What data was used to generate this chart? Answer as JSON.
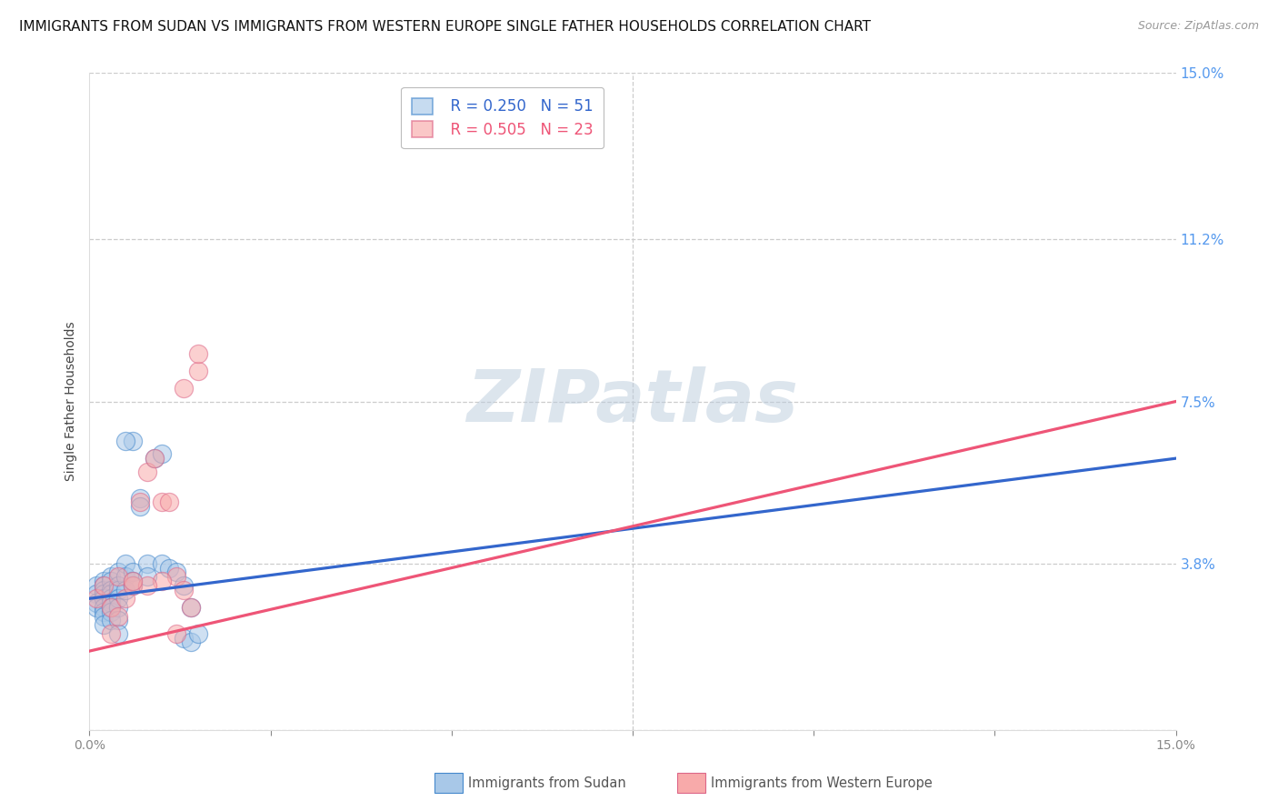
{
  "title": "IMMIGRANTS FROM SUDAN VS IMMIGRANTS FROM WESTERN EUROPE SINGLE FATHER HOUSEHOLDS CORRELATION CHART",
  "source": "Source: ZipAtlas.com",
  "ylabel": "Single Father Households",
  "watermark": "ZIPatlas",
  "xlim": [
    0.0,
    0.15
  ],
  "ylim": [
    0.0,
    0.15
  ],
  "ytick_pos": [
    0.0,
    0.038,
    0.075,
    0.112,
    0.15
  ],
  "ytick_labels": [
    "",
    "3.8%",
    "7.5%",
    "11.2%",
    "15.0%"
  ],
  "xtick_pos": [
    0.0,
    0.025,
    0.05,
    0.075,
    0.1,
    0.125,
    0.15
  ],
  "xtick_labels": [
    "0.0%",
    "",
    "",
    "",
    "",
    "",
    "15.0%"
  ],
  "legend_blue_r": "R = 0.250",
  "legend_blue_n": "N = 51",
  "legend_pink_r": "R = 0.505",
  "legend_pink_n": "N = 23",
  "blue_fill": "#A8C8E8",
  "blue_edge": "#4488CC",
  "pink_fill": "#F8AAAA",
  "pink_edge": "#DD6688",
  "blue_line": "#3366CC",
  "pink_line": "#EE5577",
  "right_tick_color": "#5599EE",
  "title_fontsize": 11,
  "axis_label_fontsize": 10,
  "tick_fontsize": 10,
  "legend_fontsize": 12,
  "watermark_fontsize": 58,
  "source_fontsize": 9,
  "background_color": "#FFFFFF",
  "grid_color": "#CCCCCC",
  "blue_scatter": [
    [
      0.001,
      0.033
    ],
    [
      0.001,
      0.031
    ],
    [
      0.001,
      0.029
    ],
    [
      0.001,
      0.028
    ],
    [
      0.002,
      0.034
    ],
    [
      0.002,
      0.033
    ],
    [
      0.002,
      0.032
    ],
    [
      0.002,
      0.031
    ],
    [
      0.002,
      0.03
    ],
    [
      0.002,
      0.028
    ],
    [
      0.002,
      0.027
    ],
    [
      0.002,
      0.026
    ],
    [
      0.002,
      0.024
    ],
    [
      0.003,
      0.035
    ],
    [
      0.003,
      0.034
    ],
    [
      0.003,
      0.032
    ],
    [
      0.003,
      0.031
    ],
    [
      0.003,
      0.03
    ],
    [
      0.003,
      0.029
    ],
    [
      0.003,
      0.028
    ],
    [
      0.003,
      0.027
    ],
    [
      0.003,
      0.025
    ],
    [
      0.004,
      0.036
    ],
    [
      0.004,
      0.033
    ],
    [
      0.004,
      0.032
    ],
    [
      0.004,
      0.03
    ],
    [
      0.004,
      0.028
    ],
    [
      0.004,
      0.025
    ],
    [
      0.004,
      0.022
    ],
    [
      0.005,
      0.038
    ],
    [
      0.005,
      0.035
    ],
    [
      0.005,
      0.032
    ],
    [
      0.006,
      0.036
    ],
    [
      0.006,
      0.034
    ],
    [
      0.006,
      0.033
    ],
    [
      0.007,
      0.053
    ],
    [
      0.007,
      0.051
    ],
    [
      0.008,
      0.038
    ],
    [
      0.008,
      0.035
    ],
    [
      0.009,
      0.062
    ],
    [
      0.01,
      0.063
    ],
    [
      0.01,
      0.038
    ],
    [
      0.011,
      0.037
    ],
    [
      0.012,
      0.036
    ],
    [
      0.013,
      0.033
    ],
    [
      0.013,
      0.021
    ],
    [
      0.014,
      0.028
    ],
    [
      0.014,
      0.02
    ],
    [
      0.015,
      0.022
    ],
    [
      0.006,
      0.066
    ],
    [
      0.005,
      0.066
    ]
  ],
  "pink_scatter": [
    [
      0.001,
      0.03
    ],
    [
      0.002,
      0.033
    ],
    [
      0.003,
      0.028
    ],
    [
      0.004,
      0.035
    ],
    [
      0.005,
      0.03
    ],
    [
      0.006,
      0.033
    ],
    [
      0.007,
      0.052
    ],
    [
      0.008,
      0.059
    ],
    [
      0.009,
      0.062
    ],
    [
      0.01,
      0.052
    ],
    [
      0.011,
      0.052
    ],
    [
      0.012,
      0.035
    ],
    [
      0.013,
      0.078
    ],
    [
      0.014,
      0.028
    ],
    [
      0.015,
      0.082
    ],
    [
      0.015,
      0.086
    ],
    [
      0.013,
      0.032
    ],
    [
      0.01,
      0.034
    ],
    [
      0.008,
      0.033
    ],
    [
      0.006,
      0.034
    ],
    [
      0.004,
      0.026
    ],
    [
      0.003,
      0.022
    ],
    [
      0.012,
      0.022
    ]
  ],
  "blue_line_x": [
    0.0,
    0.15
  ],
  "blue_line_y": [
    0.03,
    0.062
  ],
  "pink_line_x": [
    0.0,
    0.15
  ],
  "pink_line_y": [
    0.018,
    0.075
  ]
}
